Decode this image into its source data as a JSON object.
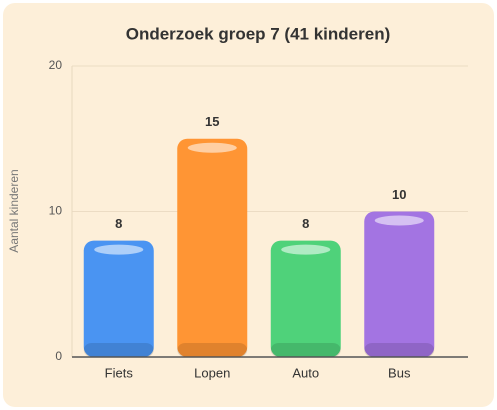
{
  "chart_data": {
    "type": "bar",
    "title": "Onderzoek groep 7 (41 kinderen)",
    "ylabel": "Aantal kinderen",
    "categories": [
      "Fiets",
      "Lopen",
      "Auto",
      "Bus"
    ],
    "values": [
      8,
      15,
      8,
      10
    ],
    "colors": [
      "#4a94f2",
      "#ff9534",
      "#4fd27a",
      "#a374e2"
    ],
    "ylim": [
      0,
      20
    ],
    "yticks": [
      0,
      10,
      20
    ],
    "grid": true
  }
}
